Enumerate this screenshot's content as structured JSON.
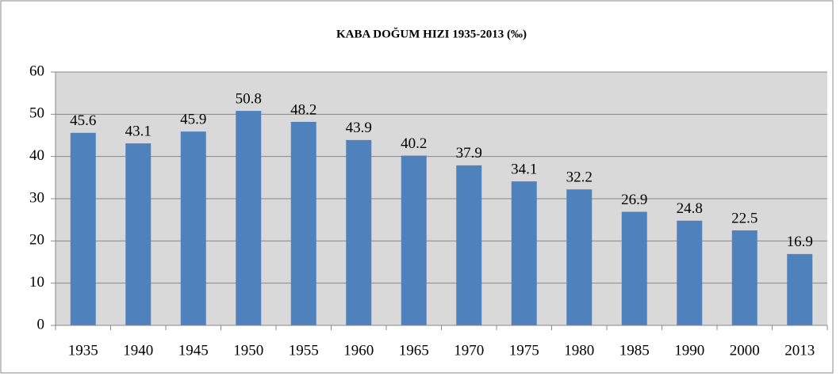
{
  "chart_data": {
    "type": "bar",
    "title": "KABA DOĞUM  HIZI 1935-2013 (‰)",
    "categories": [
      "1935",
      "1940",
      "1945",
      "1950",
      "1955",
      "1960",
      "1965",
      "1970",
      "1975",
      "1980",
      "1985",
      "1990",
      "2000",
      "2013"
    ],
    "values": [
      45.6,
      43.1,
      45.9,
      50.8,
      48.2,
      43.9,
      40.2,
      37.9,
      34.1,
      32.2,
      26.9,
      24.8,
      22.5,
      16.9
    ],
    "color": "#4f81bd",
    "ylim": [
      0,
      60
    ],
    "yticks": [
      0,
      10,
      20,
      30,
      40,
      50,
      60
    ],
    "grid": true
  }
}
